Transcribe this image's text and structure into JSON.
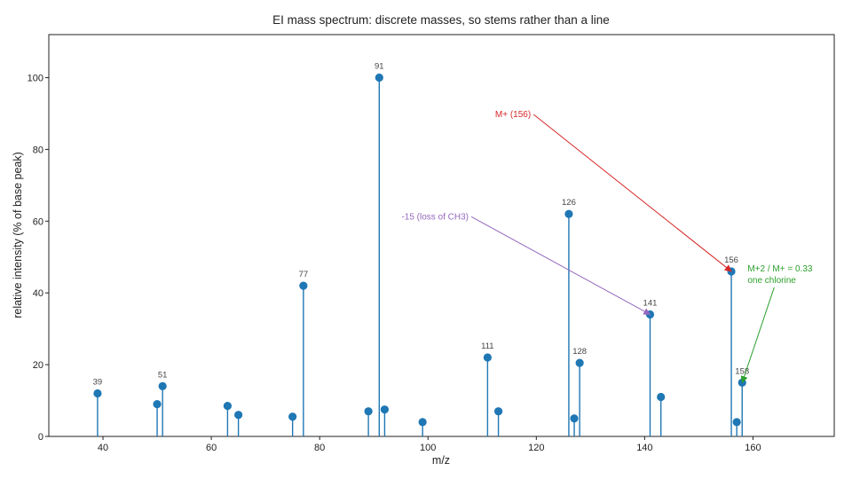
{
  "chart_data": {
    "type": "stem",
    "title": "EI mass spectrum: discrete masses, so stems rather than a line",
    "xlabel": "m/z",
    "ylabel": "relative intensity (% of base peak)",
    "xlim": [
      30,
      175
    ],
    "ylim": [
      0,
      112
    ],
    "xticks": [
      40,
      60,
      80,
      100,
      120,
      140,
      160
    ],
    "yticks": [
      0,
      20,
      40,
      60,
      80,
      100
    ],
    "grid": false,
    "stem_color": "#1f77b4",
    "peaks": [
      {
        "mz": 39,
        "intensity": 12,
        "label": "39"
      },
      {
        "mz": 50,
        "intensity": 9,
        "label": ""
      },
      {
        "mz": 51,
        "intensity": 14,
        "label": "51"
      },
      {
        "mz": 63,
        "intensity": 8.5,
        "label": ""
      },
      {
        "mz": 65,
        "intensity": 6,
        "label": ""
      },
      {
        "mz": 75,
        "intensity": 5.5,
        "label": ""
      },
      {
        "mz": 77,
        "intensity": 42,
        "label": "77"
      },
      {
        "mz": 89,
        "intensity": 7,
        "label": ""
      },
      {
        "mz": 91,
        "intensity": 100,
        "label": "91"
      },
      {
        "mz": 92,
        "intensity": 7.5,
        "label": ""
      },
      {
        "mz": 99,
        "intensity": 4,
        "label": ""
      },
      {
        "mz": 111,
        "intensity": 22,
        "label": "111"
      },
      {
        "mz": 113,
        "intensity": 7,
        "label": ""
      },
      {
        "mz": 126,
        "intensity": 62,
        "label": "126"
      },
      {
        "mz": 127,
        "intensity": 5,
        "label": ""
      },
      {
        "mz": 128,
        "intensity": 20.5,
        "label": "128"
      },
      {
        "mz": 141,
        "intensity": 34,
        "label": "141"
      },
      {
        "mz": 143,
        "intensity": 11,
        "label": ""
      },
      {
        "mz": 156,
        "intensity": 46,
        "label": "156"
      },
      {
        "mz": 157,
        "intensity": 4,
        "label": ""
      },
      {
        "mz": 158,
        "intensity": 15,
        "label": "158"
      }
    ],
    "annotations": [
      {
        "name": "molecular-ion",
        "lines": [
          "M+ (156)"
        ],
        "color": "#d62728",
        "text_at": [
          119,
          89
        ],
        "arrow_to": [
          156,
          46
        ],
        "anchor": "end"
      },
      {
        "name": "loss-ch3",
        "lines": [
          "-15 (loss of CH3)"
        ],
        "color": "#9467bd",
        "text_at": [
          107.5,
          60.5
        ],
        "arrow_to": [
          141,
          34
        ],
        "anchor": "end"
      },
      {
        "name": "chlorine-isotope",
        "lines": [
          "M+2 / M+ = 0.33",
          "one chlorine"
        ],
        "color": "#2ca02c",
        "text_at": [
          159,
          46
        ],
        "arrow_to": [
          158,
          15
        ],
        "anchor": "start"
      }
    ]
  }
}
